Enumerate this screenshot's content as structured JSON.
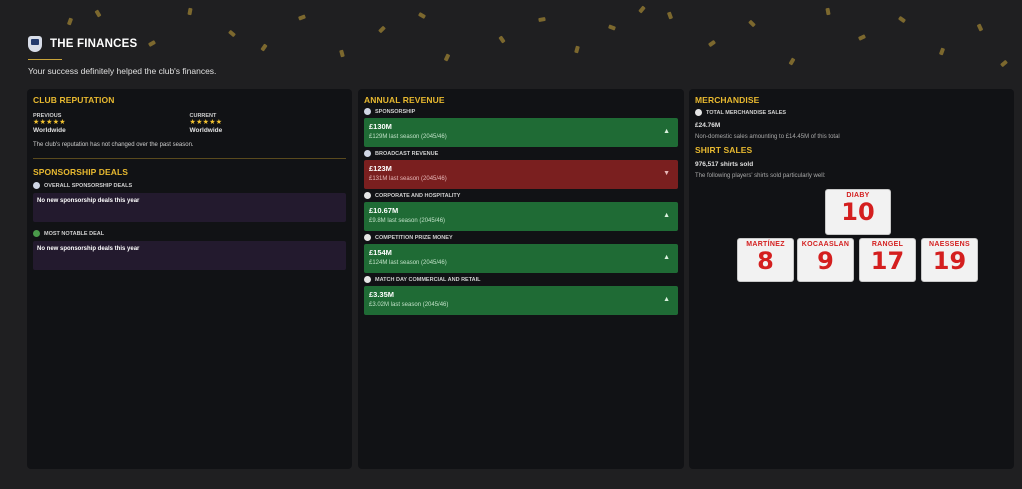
{
  "header": {
    "title": "THE FINANCES",
    "subtitle": "Your success definitely helped the club's finances."
  },
  "reputation": {
    "title": "CLUB REPUTATION",
    "previous_label": "PREVIOUS",
    "previous_stars": "★★★★★",
    "previous_value": "Worldwide",
    "current_label": "CURRENT",
    "current_stars": "★★★★★",
    "current_value": "Worldwide",
    "note": "The club's reputation has not changed over the past season."
  },
  "sponsorship": {
    "title": "SPONSORSHIP DEALS",
    "overall_label": "OVERALL SPONSORSHIP DEALS",
    "overall_text": "No new sponsorship deals this year",
    "notable_label": "MOST NOTABLE DEAL",
    "notable_text": "No new sponsorship deals this year"
  },
  "revenue": {
    "title": "ANNUAL REVENUE",
    "items": [
      {
        "label": "SPONSORSHIP",
        "amount": "£130M",
        "previous": "£129M last season (2045/46)",
        "trend": "up",
        "arrow": "▲"
      },
      {
        "label": "BROADCAST REVENUE",
        "amount": "£123M",
        "previous": "£131M last season (2045/46)",
        "trend": "down",
        "arrow": "▼"
      },
      {
        "label": "CORPORATE AND HOSPITALITY",
        "amount": "£10.67M",
        "previous": "£9.8M last season (2045/46)",
        "trend": "up",
        "arrow": "▲"
      },
      {
        "label": "COMPETITION PRIZE MONEY",
        "amount": "£154M",
        "previous": "£124M last season (2045/46)",
        "trend": "up",
        "arrow": "▲"
      },
      {
        "label": "MATCH DAY COMMERCIAL AND RETAIL",
        "amount": "£3.35M",
        "previous": "£3.02M last season (2045/46)",
        "trend": "up",
        "arrow": "▲"
      }
    ]
  },
  "merchandise": {
    "title": "MERCHANDISE",
    "total_label": "TOTAL MERCHANDISE SALES",
    "total_amount": "£24.76M",
    "total_note": "Non-domestic sales amounting to £14.45M of this total",
    "shirt_title": "SHIRT SALES",
    "shirts_sold": "976,517 shirts sold",
    "shirts_note": "The following players' shirts sold particularly well:",
    "shirts": [
      {
        "name": "DIABY",
        "number": "10"
      },
      {
        "name": "MARTÍNEZ",
        "number": "8"
      },
      {
        "name": "KOCAASLAN",
        "number": "9"
      },
      {
        "name": "RANGEL",
        "number": "17"
      },
      {
        "name": "NAESSENS",
        "number": "19"
      }
    ]
  },
  "colors": {
    "accent": "#e8b930",
    "up": "#1f6b35",
    "down": "#7a1f1f",
    "shirt_text": "#d41f1f"
  }
}
